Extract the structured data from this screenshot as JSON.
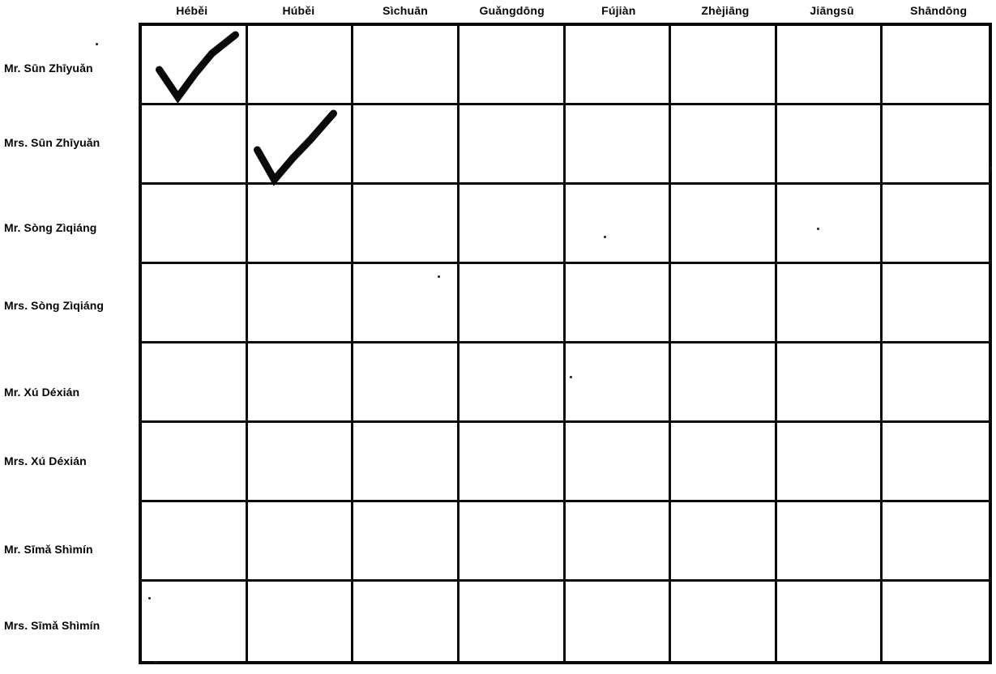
{
  "worksheet": {
    "description": "Province check-off grid worksheet",
    "column_headers": [
      "Héběi",
      "Húběi",
      "Sìchuān",
      "Guǎngdōng",
      "Fújiàn",
      "Zhèjiāng",
      "Jiāngsū",
      "Shāndōng"
    ],
    "row_labels": [
      "Mr. Sūn Zhīyuǎn",
      "Mrs. Sūn Zhīyuǎn",
      "Mr. Sòng Zìqiáng",
      "Mrs. Sòng Zìqiáng",
      "Mr. Xú Déxián",
      "Mrs. Xú Déxián",
      "Mr. Sīmǎ Shìmín",
      "Mrs. Sīmǎ Shìmín"
    ],
    "checkmarks": [
      {
        "row": 0,
        "col": 0,
        "person": "Mr. Sūn Zhīyuǎn",
        "province": "Héběi"
      },
      {
        "row": 1,
        "col": 1,
        "person": "Mrs. Sūn Zhīyuǎn",
        "province": "Húběi"
      }
    ],
    "grid": {
      "rows": 8,
      "cols": 8
    },
    "colors": {
      "ink": "#0a0a0a",
      "paper": "#ffffff"
    }
  }
}
